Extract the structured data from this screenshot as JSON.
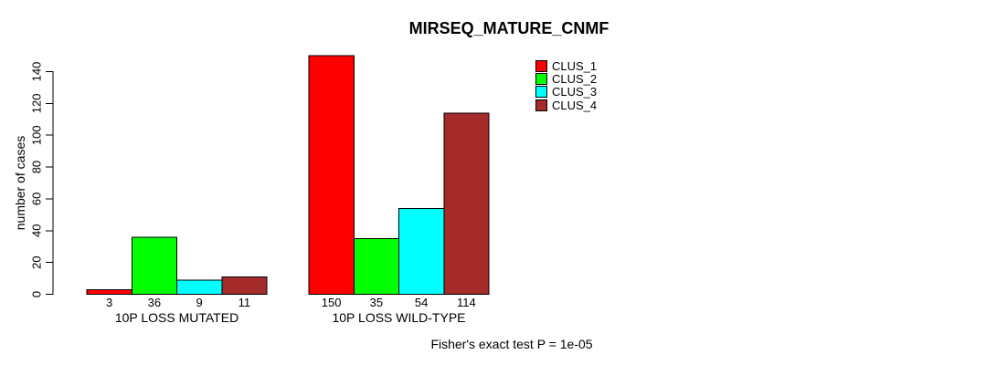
{
  "chart_data": {
    "type": "bar",
    "title": "MIRSEQ_MATURE_CNMF",
    "ylabel": "number of cases",
    "xlabel": "",
    "ylim": [
      0,
      140
    ],
    "yticks": [
      0,
      20,
      40,
      60,
      80,
      100,
      120,
      140
    ],
    "categories": [
      "10P LOSS MUTATED",
      "10P LOSS WILD-TYPE"
    ],
    "series": [
      {
        "name": "CLUS_1",
        "color": "#FF0000",
        "values": [
          3,
          150
        ]
      },
      {
        "name": "CLUS_2",
        "color": "#00FF00",
        "values": [
          36,
          35
        ]
      },
      {
        "name": "CLUS_3",
        "color": "#00FFFF",
        "values": [
          9,
          54
        ]
      },
      {
        "name": "CLUS_4",
        "color": "#A52A2A",
        "values": [
          11,
          114
        ]
      }
    ],
    "bar_value_labels_shown": true,
    "legend_position": "top-right",
    "grid": false,
    "annotation": "Fisher's exact test P = 1e-05"
  },
  "colors": {
    "background": "#FFFFFF",
    "axis": "#000000",
    "bar_border": "#000000",
    "text": "#000000"
  }
}
